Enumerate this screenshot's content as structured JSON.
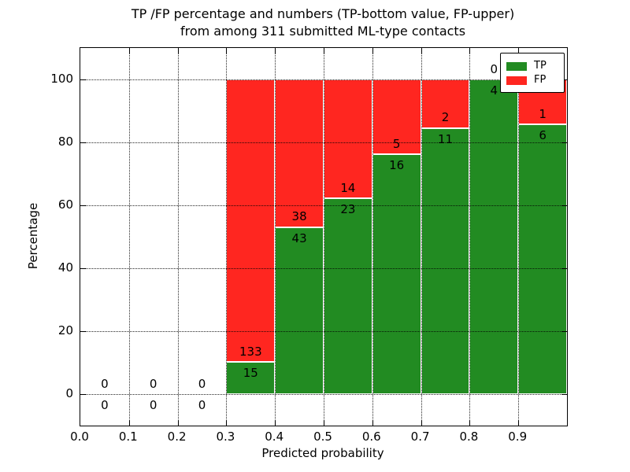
{
  "figure": {
    "title_line1": "TP /FP percentage and numbers (TP-bottom value, FP-upper)",
    "title_line2": "from among 311 submitted ML-type contacts",
    "xlabel": "Predicted probability",
    "ylabel": "Percentage"
  },
  "chart_data": {
    "type": "bar",
    "stacked": true,
    "normalized_to_percent": true,
    "title": "TP /FP percentage and numbers (TP-bottom value, FP-upper)\nfrom among 311 submitted ML-type contacts",
    "xlabel": "Predicted probability",
    "ylabel": "Percentage",
    "bins_start": [
      0.0,
      0.1,
      0.2,
      0.3,
      0.4,
      0.5,
      0.6,
      0.7,
      0.8,
      0.9
    ],
    "bin_width": 0.1,
    "series": [
      {
        "name": "TP",
        "color": "#228B22",
        "values": [
          0,
          0,
          0,
          15,
          43,
          23,
          16,
          11,
          4,
          6
        ]
      },
      {
        "name": "FP",
        "color": "#FF2620",
        "values": [
          0,
          0,
          0,
          133,
          38,
          14,
          5,
          2,
          0,
          1
        ]
      }
    ],
    "annotation_rule": "FP count printed above TP segment top, TP count printed below it",
    "xticks": [
      "0.0",
      "0.1",
      "0.2",
      "0.3",
      "0.4",
      "0.5",
      "0.6",
      "0.7",
      "0.8",
      "0.9"
    ],
    "yticks": [
      0,
      20,
      40,
      60,
      80,
      100
    ],
    "xlim": [
      0.0,
      1.0
    ],
    "ylim": [
      -10,
      110
    ],
    "grid": "dotted",
    "grid_color": "#000000",
    "legend": {
      "position": "upper right",
      "entries": [
        "TP",
        "FP"
      ]
    }
  }
}
